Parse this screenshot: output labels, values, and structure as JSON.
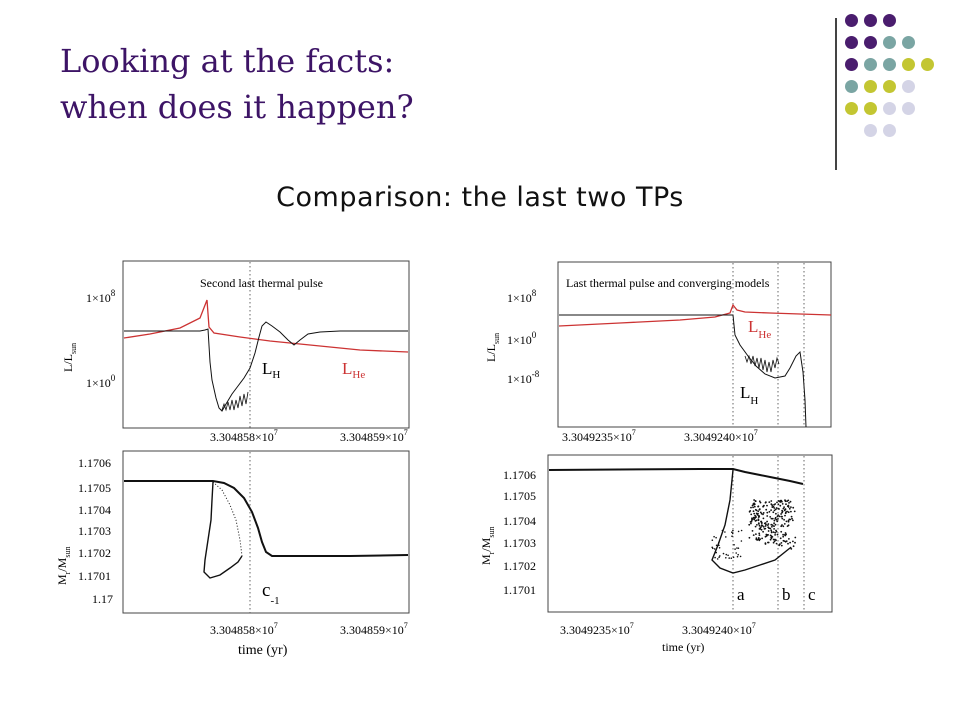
{
  "slide": {
    "title_line1": "Looking at the facts:",
    "title_line2": "when does it happen?",
    "subtitle": "Comparison: the last two TPs"
  },
  "theme": {
    "title_color": "#3d1466",
    "dot_colors": {
      "purple": "#4a1d6e",
      "teal": "#7aa5a3",
      "lime": "#c3c632",
      "lavender": "#d4d4e6"
    },
    "dot_grid": [
      [
        "purple",
        "purple",
        "purple",
        null,
        null
      ],
      [
        "purple",
        "purple",
        "teal",
        "teal",
        null
      ],
      [
        "purple",
        "teal",
        "teal",
        "lime",
        "lime"
      ],
      [
        "teal",
        "lime",
        "lime",
        "lavender",
        null
      ],
      [
        "lime",
        "lime",
        "lavender",
        "lavender",
        null
      ],
      [
        null,
        "lavender",
        "lavender",
        null,
        null
      ]
    ]
  },
  "chart_data": [
    {
      "type": "line",
      "title": "Second last thermal pulse",
      "ylabel": "L/L_sun",
      "ytick_labels": [
        "1×10^8",
        "1×10^0"
      ],
      "xtick_labels": [
        "3.304858×10^7",
        "3.304859×10^7"
      ],
      "series": [
        {
          "name": "L_H",
          "color": "#000000"
        },
        {
          "name": "L_He",
          "color": "#cc3333"
        }
      ],
      "vline_dotted": true
    },
    {
      "type": "scatter",
      "ylabel": "M_r/M_sun",
      "xlabel": "time (yr)",
      "ytick_labels": [
        "1.1706",
        "1.1705",
        "1.1704",
        "1.1703",
        "1.1702",
        "1.1701",
        "1.17"
      ],
      "xtick_labels": [
        "3.304858×10^7",
        "3.304859×10^7"
      ],
      "annotations": [
        "c_-1"
      ]
    },
    {
      "type": "line",
      "title": "Last thermal pulse and converging models",
      "ylabel": "L/L_sun",
      "ytick_labels": [
        "1×10^8",
        "1×10^0",
        "1×10^-8"
      ],
      "xtick_labels": [
        "3.3049235×10^7",
        "3.3049240×10^7"
      ],
      "series": [
        {
          "name": "L_H",
          "color": "#000000"
        },
        {
          "name": "L_He",
          "color": "#cc3333"
        }
      ]
    },
    {
      "type": "scatter",
      "ylabel": "M_r/M_sun",
      "xlabel": "time (yr)",
      "ytick_labels": [
        "1.1706",
        "1.1705",
        "1.1704",
        "1.1703",
        "1.1702",
        "1.1701"
      ],
      "xtick_labels": [
        "3.3049235×10^7",
        "3.3049240×10^7"
      ],
      "annotations": [
        "a",
        "b",
        "c"
      ]
    }
  ],
  "labels": {
    "L_H": "L",
    "L_H_sub": "H",
    "L_He": "L",
    "L_He_sub": "He",
    "ylab_L": "L/L",
    "ylab_L_sub": "sun",
    "ylab_M_main": "M",
    "ylab_M_r": "r",
    "ylab_M_rest": "/M",
    "ylab_M_sub": "sun",
    "exp8": "8",
    "exp0": "0",
    "expm8": "-8",
    "exp7": "7",
    "tick_1e": "1×10",
    "tA1": "3.304858×10",
    "tA2": "3.304859×10",
    "tB1": "3.3049235×10",
    "tB2": "3.3049240×10",
    "c_main": "c",
    "c_sub": "-1",
    "a": "a",
    "b": "b",
    "c": "c",
    "time": "time (yr)",
    "m6": "1.1706",
    "m5": "1.1705",
    "m4": "1.1704",
    "m3": "1.1703",
    "m2": "1.1702",
    "m1": "1.1701",
    "m0": "1.17",
    "title_A": "Second last thermal pulse",
    "title_B": "Last thermal pulse and converging models"
  }
}
